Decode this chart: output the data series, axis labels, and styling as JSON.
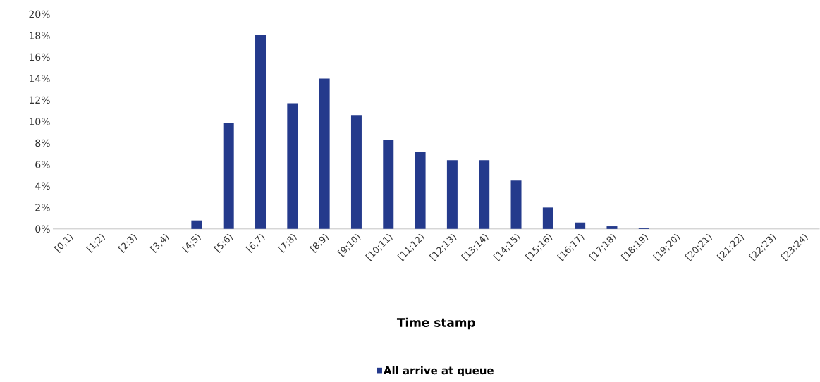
{
  "chart_data": {
    "type": "bar",
    "xlabel": "Time stamp",
    "categories": [
      "[0;1)",
      "[1;2)",
      "[2;3)",
      "[3;4)",
      "[4;5)",
      "[5;6)",
      "[6;7)",
      "[7;8)",
      "[8;9)",
      "[9;10)",
      "[10;11)",
      "[11;12)",
      "[12;13)",
      "[13;14)",
      "[14;15)",
      "[15;16)",
      "[16;17)",
      "[17;18)",
      "[18;19)",
      "[19;20)",
      "[20;21)",
      "[21;22)",
      "[22;23)",
      "[23;24)"
    ],
    "series": [
      {
        "name": "All arrive at queue",
        "color": "#243a8c",
        "values": [
          0,
          0,
          0,
          0,
          0.8,
          9.9,
          18.1,
          11.7,
          14.0,
          10.6,
          8.3,
          7.2,
          6.4,
          6.4,
          4.5,
          2.0,
          0.6,
          0.25,
          0.1,
          0,
          0,
          0,
          0,
          0
        ]
      }
    ],
    "ylim": [
      0,
      20
    ],
    "yticks": [
      {
        "value": 0,
        "label": "0%"
      },
      {
        "value": 2,
        "label": "2%"
      },
      {
        "value": 4,
        "label": "4%"
      },
      {
        "value": 6,
        "label": "6%"
      },
      {
        "value": 8,
        "label": "8%"
      },
      {
        "value": 10,
        "label": "10%"
      },
      {
        "value": 12,
        "label": "12%"
      },
      {
        "value": 14,
        "label": "14%"
      },
      {
        "value": 16,
        "label": "16%"
      },
      {
        "value": 18,
        "label": "18%"
      },
      {
        "value": 20,
        "label": "20%"
      }
    ],
    "legend": "bottom"
  }
}
